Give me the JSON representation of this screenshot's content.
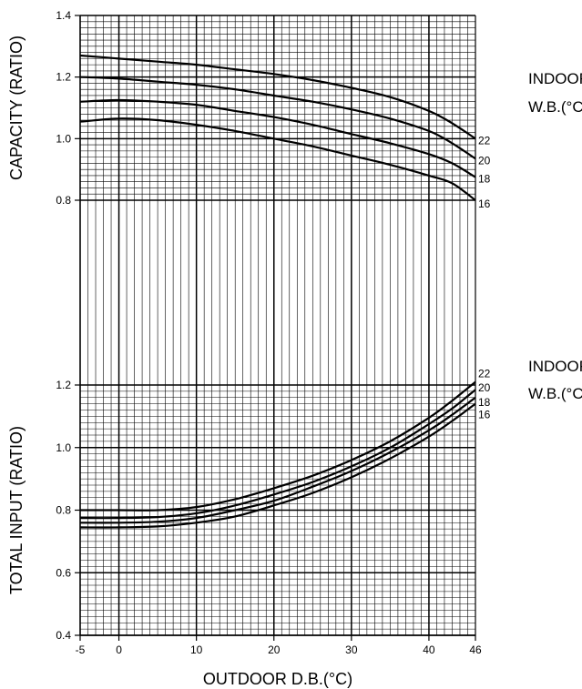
{
  "chart_data": [
    {
      "type": "line",
      "title": "",
      "xlabel": "OUTDOOR D.B.(°C)",
      "ylabel": "CAPACITY (RATIO)",
      "xlim": [
        -5,
        46
      ],
      "ylim": [
        0.8,
        1.4
      ],
      "xticks": [
        -5,
        0,
        10,
        20,
        30,
        40,
        46
      ],
      "yticks": [
        0.8,
        1.0,
        1.2,
        1.4
      ],
      "grid": true,
      "side_label": [
        "INDOOR",
        "W.B.(°C)"
      ],
      "x": [
        -5,
        0,
        5,
        10,
        15,
        20,
        25,
        30,
        35,
        40,
        43,
        46
      ],
      "series": [
        {
          "name": "22",
          "values": [
            1.27,
            1.26,
            1.25,
            1.24,
            1.225,
            1.21,
            1.19,
            1.165,
            1.135,
            1.09,
            1.05,
            1.0
          ]
        },
        {
          "name": "20",
          "values": [
            1.2,
            1.195,
            1.185,
            1.175,
            1.16,
            1.14,
            1.12,
            1.095,
            1.065,
            1.025,
            0.985,
            0.935
          ]
        },
        {
          "name": "18",
          "values": [
            1.12,
            1.125,
            1.12,
            1.11,
            1.09,
            1.07,
            1.045,
            1.015,
            0.985,
            0.95,
            0.92,
            0.875
          ]
        },
        {
          "name": "16",
          "values": [
            1.055,
            1.065,
            1.06,
            1.045,
            1.025,
            1.0,
            0.975,
            0.945,
            0.915,
            0.88,
            0.855,
            0.8
          ]
        }
      ]
    },
    {
      "type": "line",
      "title": "",
      "xlabel": "OUTDOOR D.B.(°C)",
      "ylabel": "TOTAL INPUT (RATIO)",
      "xlim": [
        -5,
        46
      ],
      "ylim": [
        0.4,
        1.2
      ],
      "xticks": [
        -5,
        0,
        10,
        20,
        30,
        40,
        46
      ],
      "yticks": [
        0.4,
        0.6,
        0.8,
        1.0,
        1.2
      ],
      "grid": true,
      "side_label": [
        "INDOOR",
        "W.B.(°C)"
      ],
      "x": [
        -5,
        0,
        5,
        10,
        15,
        20,
        25,
        30,
        35,
        40,
        43,
        46
      ],
      "series": [
        {
          "name": "22",
          "values": [
            0.8,
            0.8,
            0.8,
            0.81,
            0.835,
            0.87,
            0.91,
            0.96,
            1.02,
            1.095,
            1.15,
            1.21
          ]
        },
        {
          "name": "20",
          "values": [
            0.775,
            0.775,
            0.778,
            0.79,
            0.815,
            0.85,
            0.89,
            0.94,
            1.0,
            1.075,
            1.125,
            1.185
          ]
        },
        {
          "name": "18",
          "values": [
            0.76,
            0.76,
            0.763,
            0.775,
            0.8,
            0.83,
            0.875,
            0.925,
            0.985,
            1.055,
            1.105,
            1.16
          ]
        },
        {
          "name": "16",
          "values": [
            0.745,
            0.745,
            0.748,
            0.76,
            0.78,
            0.815,
            0.855,
            0.905,
            0.965,
            1.035,
            1.085,
            1.14
          ]
        }
      ]
    }
  ]
}
